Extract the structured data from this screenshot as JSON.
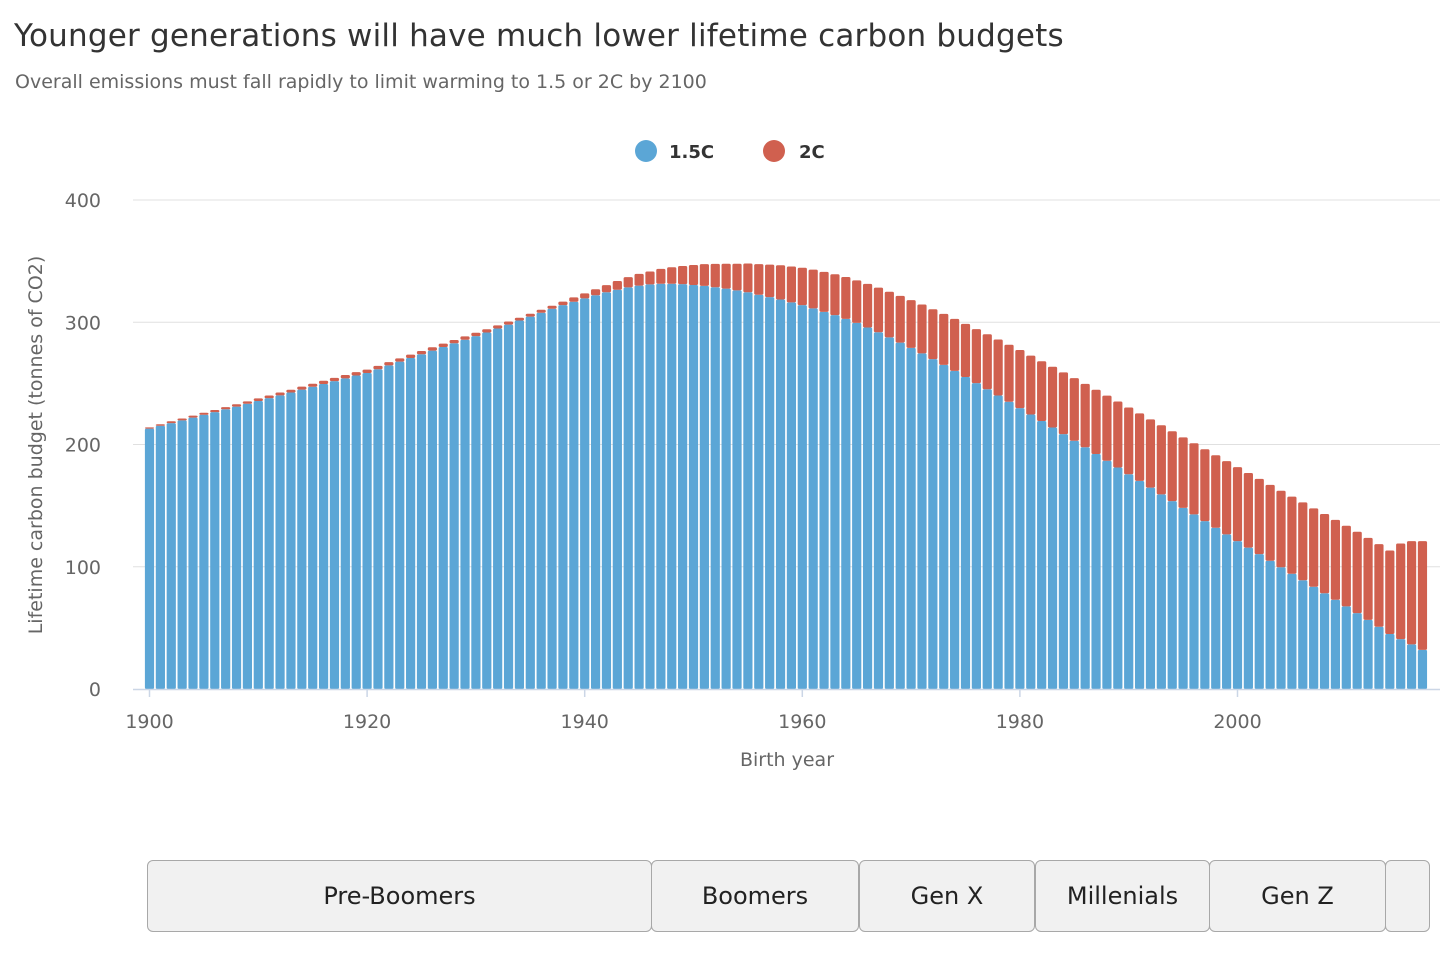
{
  "title": "Younger generations will have much lower lifetime carbon budgets",
  "subtitle": "Overall emissions must fall rapidly to limit warming to 1.5 or 2C by 2100",
  "colors": {
    "series_15": "#5ba6d6",
    "series_2": "#d0604f",
    "grid": "#e0e0e0",
    "axis": "#cbd6e6"
  },
  "generations": [
    {
      "label": "Pre-Boomers"
    },
    {
      "label": "Boomers"
    },
    {
      "label": "Gen X"
    },
    {
      "label": "Millenials"
    },
    {
      "label": "Gen Z"
    },
    {
      "label": ""
    }
  ],
  "chart_data": {
    "type": "bar",
    "stacked": true,
    "title": "Younger generations will have much lower lifetime carbon budgets",
    "subtitle": "Overall emissions must fall rapidly to limit warming to 1.5 or 2C by 2100",
    "xlabel": "Birth year",
    "ylabel": "Lifetime carbon budget (tonnes of CO2)",
    "xlim": [
      1900,
      2017
    ],
    "ylim": [
      0,
      400
    ],
    "x_ticks": [
      1900,
      1920,
      1940,
      1960,
      1980,
      2000
    ],
    "y_ticks": [
      0,
      100,
      200,
      300,
      400
    ],
    "grid": true,
    "legend_position": "top-center",
    "x": [
      1900,
      1901,
      1902,
      1903,
      1904,
      1905,
      1906,
      1907,
      1908,
      1909,
      1910,
      1911,
      1912,
      1913,
      1914,
      1915,
      1916,
      1917,
      1918,
      1919,
      1920,
      1921,
      1922,
      1923,
      1924,
      1925,
      1926,
      1927,
      1928,
      1929,
      1930,
      1931,
      1932,
      1933,
      1934,
      1935,
      1936,
      1937,
      1938,
      1939,
      1940,
      1941,
      1942,
      1943,
      1944,
      1945,
      1946,
      1947,
      1948,
      1949,
      1950,
      1951,
      1952,
      1953,
      1954,
      1955,
      1956,
      1957,
      1958,
      1959,
      1960,
      1961,
      1962,
      1963,
      1964,
      1965,
      1966,
      1967,
      1968,
      1969,
      1970,
      1971,
      1972,
      1973,
      1974,
      1975,
      1976,
      1977,
      1978,
      1979,
      1980,
      1981,
      1982,
      1983,
      1984,
      1985,
      1986,
      1987,
      1988,
      1989,
      1990,
      1991,
      1992,
      1993,
      1994,
      1995,
      1996,
      1997,
      1998,
      1999,
      2000,
      2001,
      2002,
      2003,
      2004,
      2005,
      2006,
      2007,
      2008,
      2009,
      2010,
      2011,
      2012,
      2013,
      2014,
      2015,
      2016,
      2017
    ],
    "series": [
      {
        "name": "1.5C",
        "values": [
          213,
          215.3,
          217.5,
          219.7,
          222,
          224.3,
          226.5,
          228.8,
          231,
          233.3,
          235.6,
          237.9,
          240.2,
          242.5,
          244.9,
          247.2,
          249.5,
          251.8,
          254.1,
          256.4,
          258.5,
          261.6,
          264.7,
          267.8,
          270.8,
          273.8,
          276.8,
          279.8,
          282.8,
          285.7,
          288.7,
          291.6,
          294.9,
          298.1,
          301.4,
          304.6,
          307.8,
          311,
          314,
          316.8,
          319.5,
          322.1,
          324.5,
          326.6,
          328.5,
          330,
          331,
          331.5,
          331.5,
          331.2,
          330.5,
          329.8,
          328.6,
          327.5,
          326.1,
          324.5,
          322.5,
          320.6,
          318.6,
          316.3,
          314,
          311.3,
          308.5,
          305.8,
          302.8,
          299.5,
          295.7,
          291.8,
          287.6,
          283.3,
          279,
          274.5,
          269.8,
          265.1,
          260.2,
          255.2,
          250.2,
          245.2,
          240.1,
          235,
          229.8,
          224.5,
          219.2,
          213.9,
          208.5,
          203.1,
          197.7,
          192.2,
          186.7,
          181.2,
          175.7,
          170.2,
          164.7,
          159.2,
          153.7,
          148.2,
          142.8,
          137.3,
          131.9,
          126.5,
          121,
          115.6,
          110.3,
          104.9,
          99.6,
          94.3,
          89,
          83.6,
          78.3,
          73,
          67.6,
          62.1,
          56.5,
          50.9,
          45,
          40.8,
          36.5,
          32
        ]
      },
      {
        "name": "2C",
        "values": [
          1,
          1.3,
          1.5,
          1.6,
          1.6,
          1.7,
          1.7,
          1.8,
          1.9,
          2,
          2.1,
          2.2,
          2.3,
          2.3,
          2.4,
          2.5,
          2.6,
          2.7,
          2.7,
          2.8,
          2.7,
          2.7,
          2.7,
          2.7,
          2.7,
          2.7,
          2.7,
          2.7,
          2.7,
          2.7,
          2.7,
          2.7,
          2.5,
          2.5,
          2.3,
          2.4,
          2.4,
          2.5,
          2.9,
          3.5,
          4.1,
          4.9,
          5.9,
          7.1,
          8.4,
          9.6,
          10.5,
          12.2,
          13.5,
          14.8,
          16.3,
          17.7,
          19.1,
          20.4,
          21.8,
          23.6,
          25,
          26.5,
          28,
          29.3,
          30.6,
          31.7,
          32.7,
          33.5,
          34.2,
          34.8,
          35.7,
          36.5,
          37.4,
          38.3,
          39.1,
          40,
          40.8,
          41.7,
          42.6,
          43.5,
          44.2,
          45,
          45.8,
          46.6,
          47.5,
          48.2,
          48.9,
          49.7,
          50.5,
          51.2,
          51.9,
          52.6,
          53.3,
          54,
          54.6,
          55.3,
          55.9,
          56.5,
          57.1,
          57.6,
          58.2,
          58.8,
          59.3,
          59.9,
          60.5,
          61.1,
          61.6,
          62.1,
          62.6,
          63.1,
          63.7,
          64.2,
          64.8,
          65.3,
          65.9,
          66.5,
          67.1,
          67.6,
          68.3,
          78.2,
          84.5,
          89
        ]
      }
    ]
  }
}
